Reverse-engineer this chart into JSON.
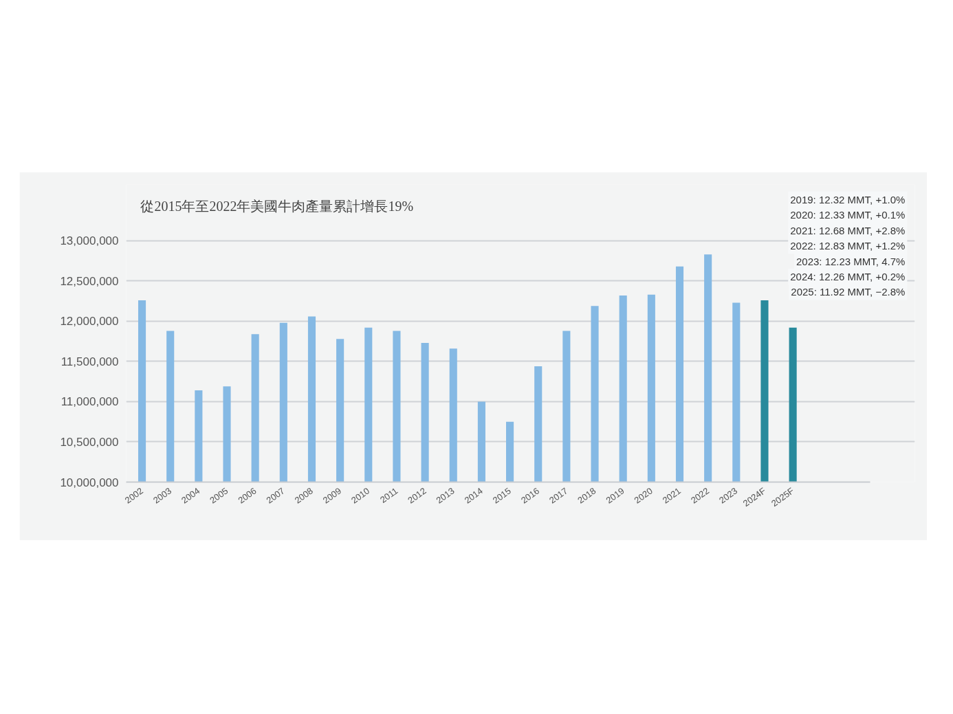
{
  "chart_data": {
    "type": "bar",
    "title": "從2015年至2022年美國牛肉產量累計增長19%",
    "categories": [
      "2002",
      "2003",
      "2004",
      "2005",
      "2006",
      "2007",
      "2008",
      "2009",
      "2010",
      "2011",
      "2012",
      "2013",
      "2014",
      "2015",
      "2016",
      "2017",
      "2018",
      "2019",
      "2020",
      "2021",
      "2022",
      "2023",
      "2024F",
      "2025F"
    ],
    "values": [
      12260000,
      11880000,
      11140000,
      11190000,
      11840000,
      11980000,
      12060000,
      11780000,
      11920000,
      11880000,
      11730000,
      11660000,
      11000000,
      10750000,
      11440000,
      11880000,
      12190000,
      12320000,
      12330000,
      12680000,
      12830000,
      12230000,
      12260000,
      11920000
    ],
    "colors": [
      "#85b9e4",
      "#85b9e4",
      "#85b9e4",
      "#85b9e4",
      "#85b9e4",
      "#85b9e4",
      "#85b9e4",
      "#85b9e4",
      "#85b9e4",
      "#85b9e4",
      "#85b9e4",
      "#85b9e4",
      "#85b9e4",
      "#85b9e4",
      "#85b9e4",
      "#85b9e4",
      "#85b9e4",
      "#85b9e4",
      "#85b9e4",
      "#85b9e4",
      "#85b9e4",
      "#85b9e4",
      "#288a9c",
      "#288a9c"
    ],
    "ylim": [
      10000000,
      13700000
    ],
    "yticks": [
      {
        "value": 10000000,
        "label": "10,000,000"
      },
      {
        "value": 10500000,
        "label": "10,500,000"
      },
      {
        "value": 11000000,
        "label": "11,000,000"
      },
      {
        "value": 11500000,
        "label": "11,500,000"
      },
      {
        "value": 12000000,
        "label": "12,000,000"
      },
      {
        "value": 12500000,
        "label": "12,500,000"
      },
      {
        "value": 13000000,
        "label": "13,000,000"
      }
    ],
    "grid": "y",
    "annotations": [
      "2019: 12.32 MMT, +1.0%",
      "2020: 12.33 MMT, +0.1%",
      "2021: 12.68 MMT, +2.8%",
      "2022: 12.83 MMT, +1.2%",
      "2023: 12.23 MMT, 4.7%",
      "2024: 12.26 MMT, +0.2%",
      "2025: 11.92 MMT, −2.8%"
    ]
  }
}
